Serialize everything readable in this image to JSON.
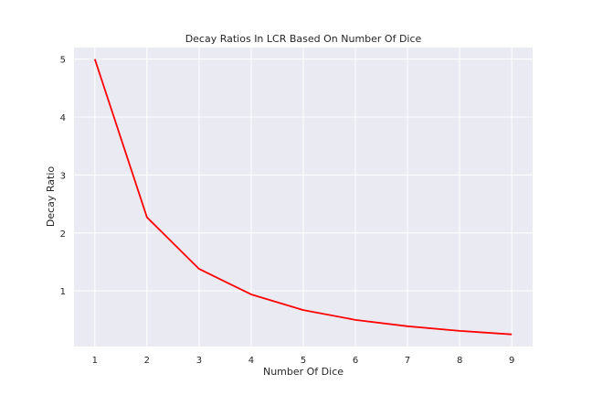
{
  "chart_data": {
    "type": "line",
    "title": "Decay Ratios In LCR Based On Number Of Dice",
    "xlabel": "Number Of Dice",
    "ylabel": "Decay Ratio",
    "x": [
      1,
      2,
      3,
      4,
      5,
      6,
      7,
      8,
      9
    ],
    "series": [
      {
        "values": [
          5.0,
          2.27,
          1.38,
          0.94,
          0.67,
          0.5,
          0.39,
          0.31,
          0.25
        ],
        "color": "#ff0000"
      }
    ],
    "xticks": [
      "1",
      "2",
      "3",
      "4",
      "5",
      "6",
      "7",
      "8",
      "9"
    ],
    "yticks": [
      "1",
      "2",
      "3",
      "4",
      "5"
    ],
    "xlim": [
      0.6,
      9.4
    ],
    "ylim": [
      0.04,
      5.2
    ],
    "grid": true,
    "background_color": "#eaeaf2",
    "grid_color": "#ffffff"
  }
}
